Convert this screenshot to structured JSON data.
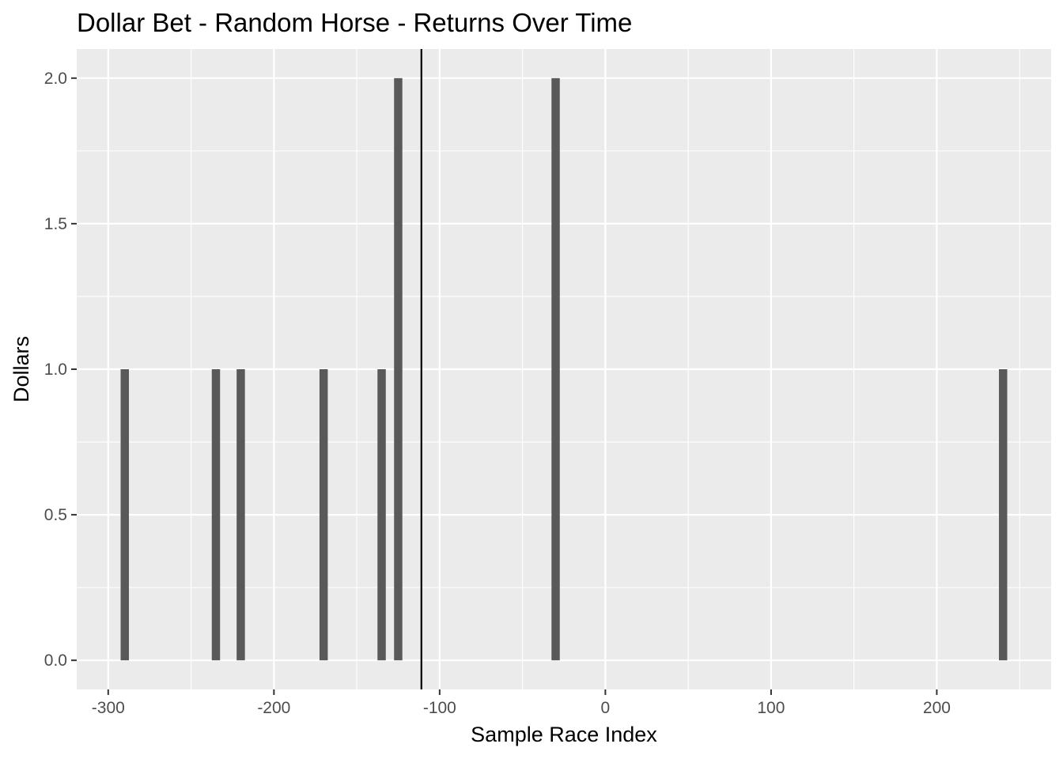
{
  "chart_data": {
    "type": "bar",
    "title": "Dollar Bet - Random Horse - Returns Over Time",
    "xlabel": "Sample Race Index",
    "ylabel": "Dollars",
    "xlim": [
      -319,
      269
    ],
    "ylim": [
      -0.1,
      2.1
    ],
    "x_ticks": [
      -300,
      -200,
      -100,
      0,
      100,
      200
    ],
    "x_tick_labels": [
      "-300",
      "-200",
      "-100",
      "0",
      "100",
      "200"
    ],
    "y_ticks": [
      0.0,
      0.5,
      1.0,
      1.5,
      2.0
    ],
    "y_tick_labels": [
      "0.0",
      "0.5",
      "1.0",
      "1.5",
      "2.0"
    ],
    "x": [
      -290,
      -235,
      -220,
      -170,
      -135,
      -125,
      -30,
      240
    ],
    "values": [
      1,
      1,
      1,
      1,
      1,
      2,
      2,
      1
    ],
    "vertical_line": -111,
    "grid": true,
    "colors": {
      "panel": "#ebebeb",
      "grid": "#ffffff",
      "bar": "#595959",
      "vline": "#000000",
      "tick": "#333333"
    }
  }
}
